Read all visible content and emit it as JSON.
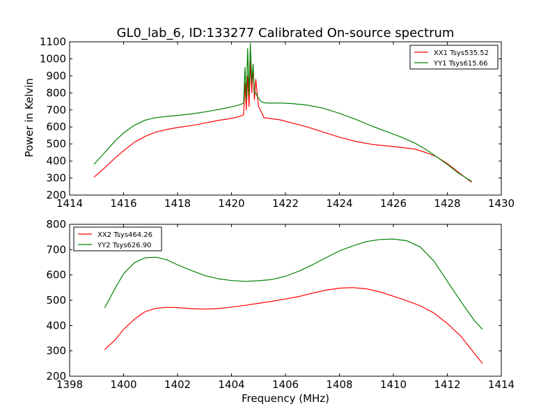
{
  "chart_data": [
    {
      "type": "line",
      "title": "GL0_lab_6, ID:133277 Calibrated On-source spectrum",
      "xlabel": "",
      "ylabel": "Power in Kelvin",
      "xlim": [
        1414,
        1430
      ],
      "ylim": [
        200,
        1100
      ],
      "xticks": [
        1414,
        1416,
        1418,
        1420,
        1422,
        1424,
        1426,
        1428,
        1430
      ],
      "yticks": [
        200,
        300,
        400,
        500,
        600,
        700,
        800,
        900,
        1000,
        1100
      ],
      "grid": false,
      "legend_position": "top-right",
      "series": [
        {
          "name": "XX1 Tsys535.52",
          "color": "#ff0000",
          "x": [
            1414.9,
            1415.3,
            1415.7,
            1416.0,
            1416.4,
            1416.8,
            1417.2,
            1417.6,
            1418.0,
            1418.5,
            1419.0,
            1419.5,
            1420.0,
            1420.3,
            1420.45,
            1420.5,
            1420.55,
            1420.6,
            1420.65,
            1420.7,
            1420.75,
            1420.8,
            1420.85,
            1420.9,
            1420.95,
            1421.0,
            1421.1,
            1421.2,
            1421.4,
            1421.8,
            1422.2,
            1422.8,
            1423.4,
            1424.0,
            1424.6,
            1425.2,
            1425.8,
            1426.3,
            1426.8,
            1427.2,
            1427.6,
            1428.0,
            1428.4,
            1428.9
          ],
          "y": [
            305,
            360,
            420,
            460,
            510,
            545,
            570,
            585,
            597,
            608,
            622,
            638,
            650,
            662,
            670,
            860,
            700,
            900,
            720,
            990,
            800,
            960,
            760,
            880,
            800,
            720,
            690,
            655,
            650,
            642,
            625,
            600,
            570,
            540,
            515,
            498,
            488,
            480,
            470,
            450,
            425,
            385,
            335,
            275
          ]
        },
        {
          "name": "YY1 Tsys615.66",
          "color": "#008000",
          "x": [
            1414.9,
            1415.3,
            1415.7,
            1416.0,
            1416.4,
            1416.8,
            1417.2,
            1417.6,
            1418.0,
            1418.5,
            1419.0,
            1419.5,
            1420.0,
            1420.3,
            1420.45,
            1420.5,
            1420.55,
            1420.6,
            1420.65,
            1420.7,
            1420.75,
            1420.8,
            1420.85,
            1420.9,
            1420.95,
            1421.0,
            1421.1,
            1421.2,
            1421.4,
            1421.8,
            1422.2,
            1422.8,
            1423.4,
            1424.0,
            1424.6,
            1425.2,
            1425.8,
            1426.3,
            1426.8,
            1427.2,
            1427.6,
            1428.0,
            1428.4,
            1428.9
          ],
          "y": [
            380,
            450,
            520,
            565,
            610,
            640,
            655,
            662,
            668,
            676,
            688,
            702,
            718,
            730,
            740,
            950,
            760,
            1060,
            790,
            1090,
            860,
            970,
            800,
            800,
            780,
            770,
            750,
            742,
            740,
            741,
            738,
            728,
            710,
            680,
            645,
            605,
            570,
            540,
            505,
            468,
            425,
            380,
            330,
            280
          ]
        }
      ]
    },
    {
      "type": "line",
      "title": "",
      "xlabel": "Frequency (MHz)",
      "ylabel": "",
      "xlim": [
        1398,
        1414
      ],
      "ylim": [
        200,
        800
      ],
      "xticks": [
        1398,
        1400,
        1402,
        1404,
        1406,
        1408,
        1410,
        1412,
        1414
      ],
      "yticks": [
        200,
        300,
        400,
        500,
        600,
        700,
        800
      ],
      "grid": false,
      "legend_position": "top-left",
      "series": [
        {
          "name": "XX2 Tsys464.26",
          "color": "#ff0000",
          "x": [
            1399.3,
            1399.7,
            1400.0,
            1400.4,
            1400.8,
            1401.2,
            1401.6,
            1402.0,
            1402.5,
            1403.0,
            1403.5,
            1404.0,
            1404.5,
            1405.0,
            1405.5,
            1406.0,
            1406.5,
            1407.0,
            1407.5,
            1408.0,
            1408.5,
            1409.0,
            1409.5,
            1410.0,
            1410.5,
            1411.0,
            1411.5,
            1412.0,
            1412.5,
            1413.0,
            1413.3
          ],
          "y": [
            305,
            345,
            385,
            425,
            455,
            468,
            472,
            471,
            467,
            465,
            467,
            473,
            480,
            488,
            496,
            505,
            515,
            528,
            540,
            548,
            550,
            545,
            533,
            516,
            498,
            478,
            450,
            408,
            358,
            290,
            250
          ]
        },
        {
          "name": "YY2 Tsys626.90",
          "color": "#008000",
          "x": [
            1399.3,
            1399.7,
            1400.0,
            1400.4,
            1400.8,
            1401.2,
            1401.6,
            1402.0,
            1402.5,
            1403.0,
            1403.5,
            1404.0,
            1404.5,
            1405.0,
            1405.5,
            1406.0,
            1406.5,
            1407.0,
            1407.5,
            1408.0,
            1408.5,
            1409.0,
            1409.5,
            1410.0,
            1410.5,
            1411.0,
            1411.5,
            1412.0,
            1412.5,
            1413.0,
            1413.3
          ],
          "y": [
            470,
            550,
            605,
            648,
            668,
            670,
            660,
            640,
            618,
            598,
            585,
            578,
            575,
            577,
            582,
            595,
            615,
            640,
            668,
            695,
            715,
            732,
            740,
            742,
            735,
            710,
            655,
            575,
            495,
            420,
            385
          ]
        }
      ]
    }
  ]
}
